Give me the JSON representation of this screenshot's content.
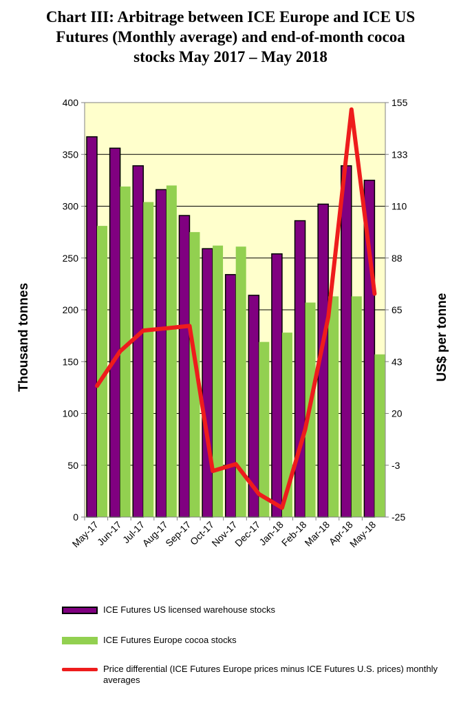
{
  "title": {
    "line1": "Chart III: Arbitrage between ICE Europe and ICE US",
    "line2": "Futures (Monthly average) and end-of-month cocoa",
    "line3": "stocks May 2017 – May 2018"
  },
  "colors": {
    "plot_background": "#ffffcc",
    "us_bars": "#800080",
    "eu_bars": "#92d050",
    "price_line": "#ee1c1c"
  },
  "chart_data": {
    "type": "bar",
    "title": "Chart III: Arbitrage between ICE Europe and ICE US Futures (Monthly average) and end-of-month cocoa stocks May 2017 – May 2018",
    "categories": [
      "May-17",
      "Jun-17",
      "Jul-17",
      "Aug-17",
      "Sep-17",
      "Oct-17",
      "Nov-17",
      "Dec-17",
      "Jan-18",
      "Feb-18",
      "Mar-18",
      "Apr-18",
      "May-18"
    ],
    "ylabel": "Thousand tonnes",
    "ylim": [
      0,
      400
    ],
    "yticks": [
      "0",
      "50",
      "100",
      "150",
      "200",
      "250",
      "300",
      "350",
      "400"
    ],
    "y2label": "US$ per tonne",
    "y2lim": [
      -25,
      155
    ],
    "y2ticks": [
      "-25",
      "-3",
      "20",
      "43",
      "65",
      "88",
      "110",
      "133",
      "155"
    ],
    "grid": true,
    "legend_position": "bottom",
    "series": [
      {
        "name": "ICE Futures US licensed warehouse stocks",
        "kind": "bar",
        "axis": "left",
        "values": [
          367,
          356,
          339,
          316,
          291,
          259,
          234,
          214,
          254,
          286,
          302,
          339,
          325
        ]
      },
      {
        "name": "ICE Futures Europe cocoa stocks",
        "kind": "bar",
        "axis": "left",
        "values": [
          281,
          319,
          304,
          320,
          275,
          262,
          261,
          169,
          178,
          207,
          213,
          213,
          157
        ]
      },
      {
        "name": "Price differential (ICE Futures Europe prices minus ICE Futures U.S. prices) monthly averages",
        "kind": "line",
        "axis": "right",
        "values": [
          32,
          47,
          56,
          57,
          58,
          -5,
          -2,
          -15,
          -21,
          13,
          62,
          152,
          72
        ]
      }
    ]
  }
}
